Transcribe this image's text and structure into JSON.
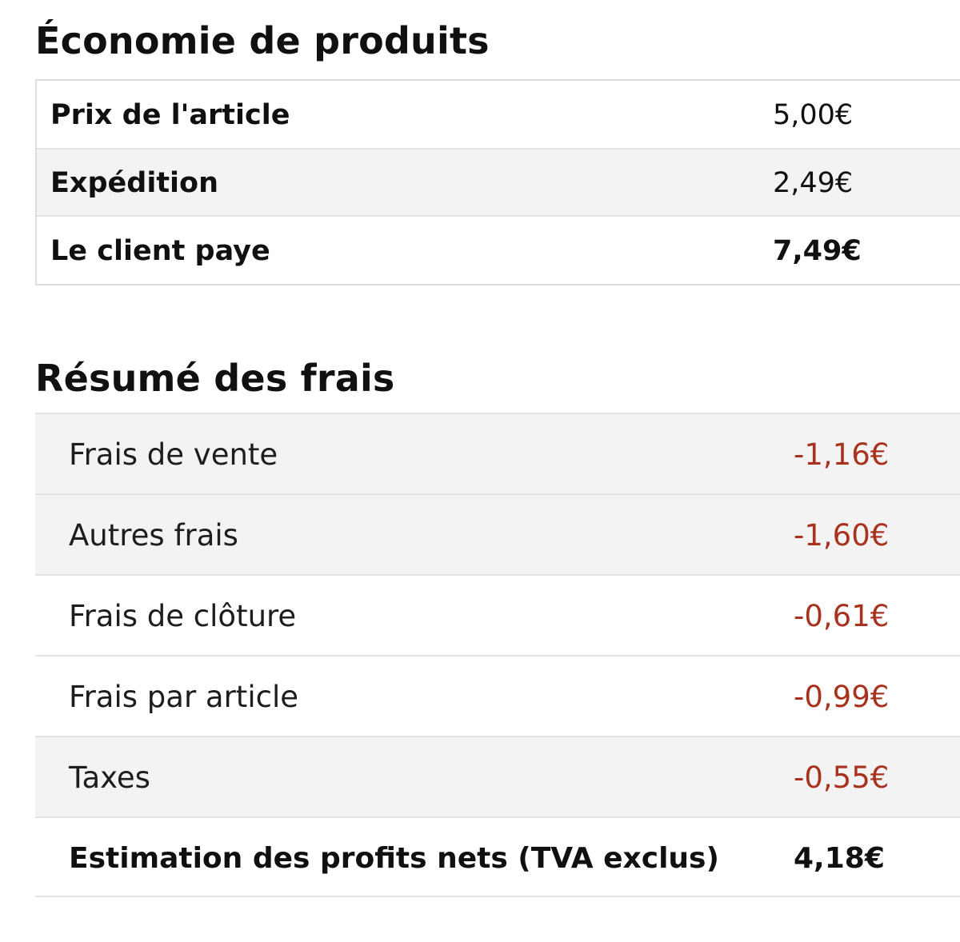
{
  "product_economics": {
    "title": "Économie de produits",
    "rows": [
      {
        "label": "Prix de l'article",
        "value": "5,00€"
      },
      {
        "label": "Expédition",
        "value": "2,49€"
      },
      {
        "label": "Le client paye",
        "value": "7,49€"
      }
    ]
  },
  "fee_summary": {
    "title": "Résumé des frais",
    "rows": [
      {
        "label": "Frais de vente",
        "value": "-1,16€"
      },
      {
        "label": "Autres frais",
        "value": "-1,60€"
      },
      {
        "label": "Frais de clôture",
        "value": "-0,61€"
      },
      {
        "label": "Frais par article",
        "value": "-0,99€"
      },
      {
        "label": "Taxes",
        "value": "-0,55€"
      }
    ],
    "net_profit": {
      "label": "Estimation des profits nets (TVA exclus)",
      "value": "4,18€"
    }
  },
  "colors": {
    "negative_value": "#a8321d",
    "shaded_row": "#f3f3f3",
    "border": "#dddddd"
  }
}
